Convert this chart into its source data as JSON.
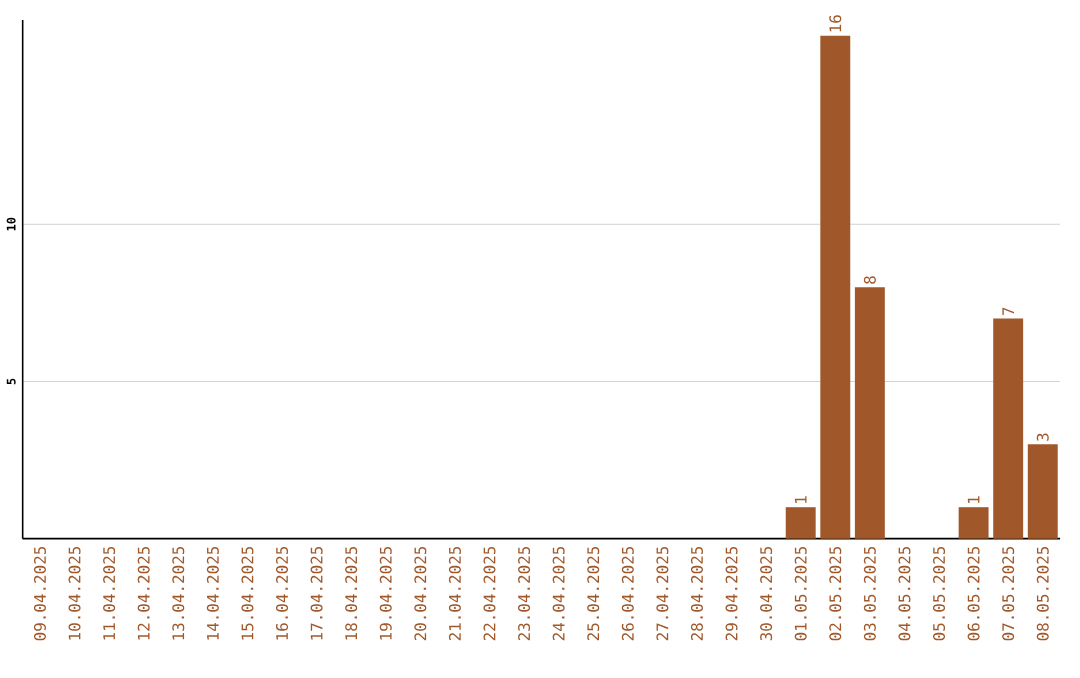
{
  "chart_data": {
    "type": "bar",
    "categories": [
      "09.04.2025",
      "10.04.2025",
      "11.04.2025",
      "12.04.2025",
      "13.04.2025",
      "14.04.2025",
      "15.04.2025",
      "16.04.2025",
      "17.04.2025",
      "18.04.2025",
      "19.04.2025",
      "20.04.2025",
      "21.04.2025",
      "22.04.2025",
      "23.04.2025",
      "24.04.2025",
      "25.04.2025",
      "26.04.2025",
      "27.04.2025",
      "28.04.2025",
      "29.04.2025",
      "30.04.2025",
      "01.05.2025",
      "02.05.2025",
      "03.05.2025",
      "04.05.2025",
      "05.05.2025",
      "06.05.2025",
      "07.05.2025",
      "08.05.2025"
    ],
    "values": [
      0,
      0,
      0,
      0,
      0,
      0,
      0,
      0,
      0,
      0,
      0,
      0,
      0,
      0,
      0,
      0,
      0,
      0,
      0,
      0,
      0,
      0,
      1,
      16,
      8,
      0,
      0,
      1,
      7,
      3
    ],
    "value_labels": [
      null,
      null,
      null,
      null,
      null,
      null,
      null,
      null,
      null,
      null,
      null,
      null,
      null,
      null,
      null,
      null,
      null,
      null,
      null,
      null,
      null,
      null,
      "1",
      "16",
      "8",
      null,
      null,
      "1",
      "7",
      "3"
    ],
    "color": "#a0582a",
    "ylim": [
      0,
      16.5
    ],
    "yticks": [
      5,
      10
    ],
    "grid": "y"
  }
}
